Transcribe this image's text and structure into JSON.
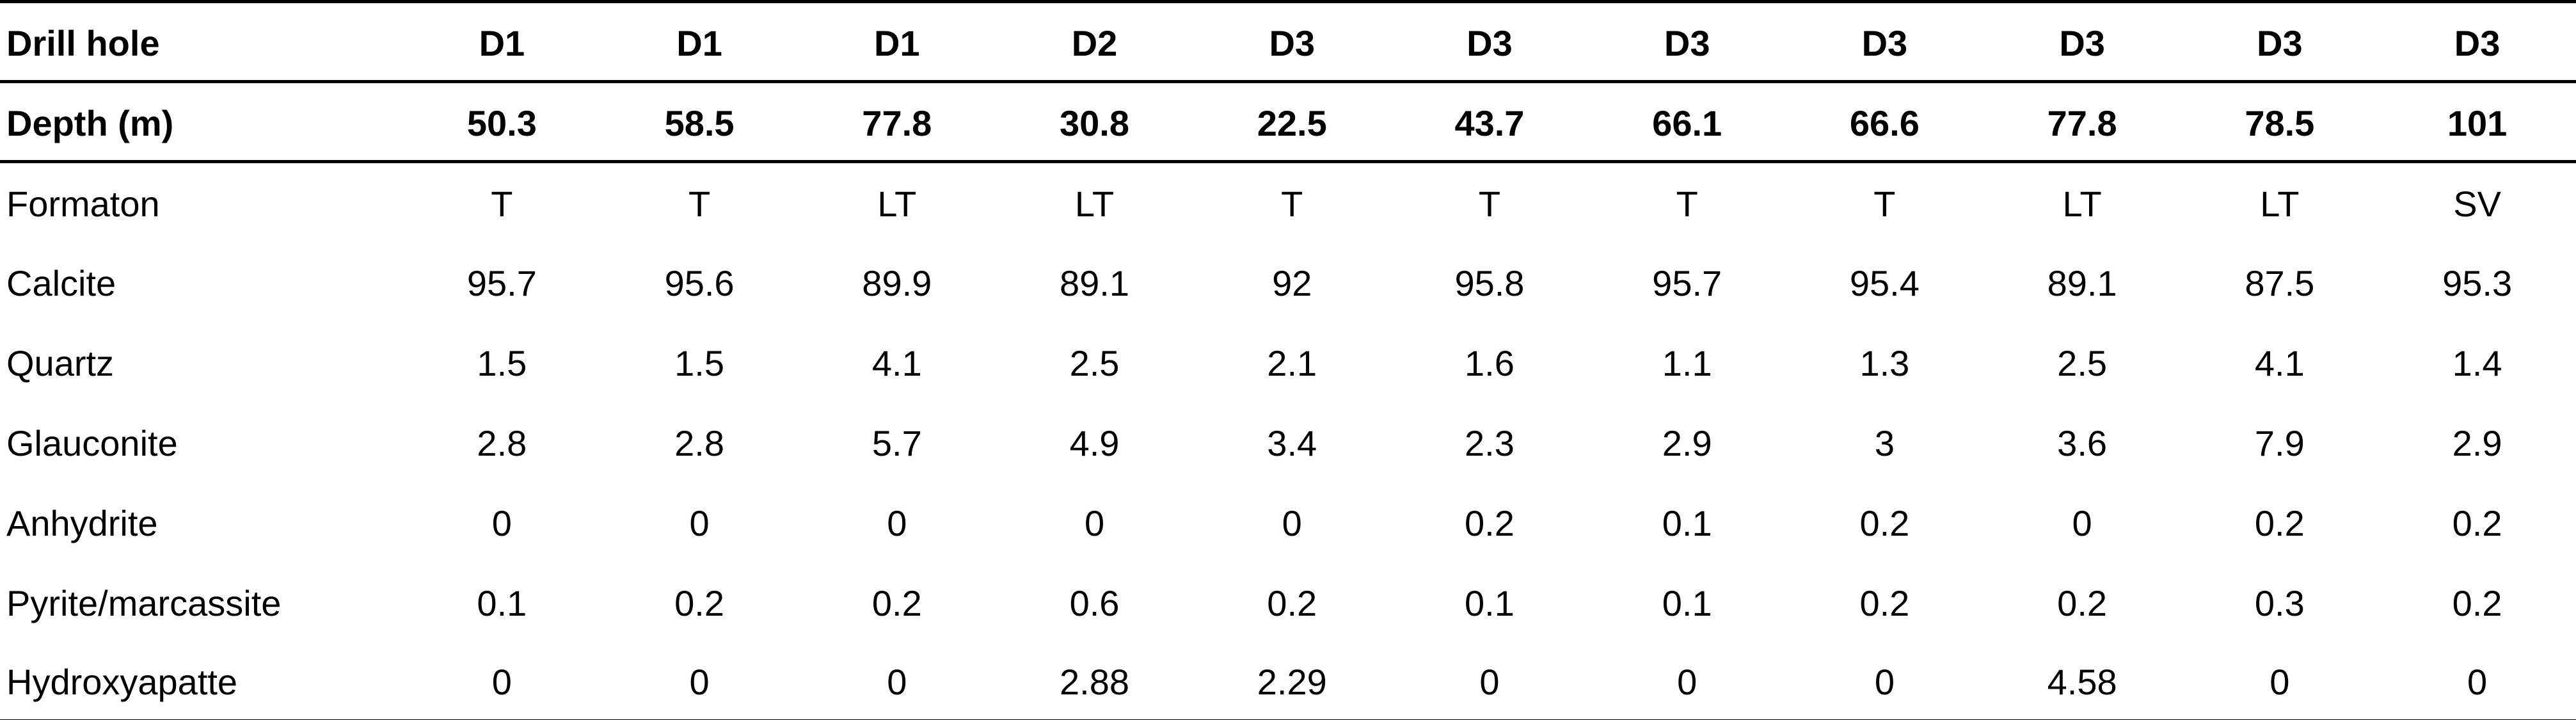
{
  "table": {
    "description": "Mineral composition table by drill hole and depth",
    "colors": {
      "background": "#ffffff",
      "text": "#000000",
      "rule": "#000000"
    },
    "rows": [
      {
        "label": "Drill hole",
        "bold": true,
        "values": [
          "D1",
          "D1",
          "D1",
          "D2",
          "D3",
          "D3",
          "D3",
          "D3",
          "D3",
          "D3",
          "D3"
        ]
      },
      {
        "label": "Depth (m)",
        "bold": true,
        "values": [
          "50.3",
          "58.5",
          "77.8",
          "30.8",
          "22.5",
          "43.7",
          "66.1",
          "66.6",
          "77.8",
          "78.5",
          "101"
        ]
      },
      {
        "label": "Formaton",
        "bold": false,
        "values": [
          "T",
          "T",
          "LT",
          "LT",
          "T",
          "T",
          "T",
          "T",
          "LT",
          "LT",
          "SV"
        ]
      },
      {
        "label": "Calcite",
        "bold": false,
        "values": [
          "95.7",
          "95.6",
          "89.9",
          "89.1",
          "92",
          "95.8",
          "95.7",
          "95.4",
          "89.1",
          "87.5",
          "95.3"
        ]
      },
      {
        "label": "Quartz",
        "bold": false,
        "values": [
          "1.5",
          "1.5",
          "4.1",
          "2.5",
          "2.1",
          "1.6",
          "1.1",
          "1.3",
          "2.5",
          "4.1",
          "1.4"
        ]
      },
      {
        "label": "Glauconite",
        "bold": false,
        "values": [
          "2.8",
          "2.8",
          "5.7",
          "4.9",
          "3.4",
          "2.3",
          "2.9",
          "3",
          "3.6",
          "7.9",
          "2.9"
        ]
      },
      {
        "label": "Anhydrite",
        "bold": false,
        "values": [
          "0",
          "0",
          "0",
          "0",
          "0",
          "0.2",
          "0.1",
          "0.2",
          "0",
          "0.2",
          "0.2"
        ]
      },
      {
        "label": "Pyrite/marcassite",
        "bold": false,
        "values": [
          "0.1",
          "0.2",
          "0.2",
          "0.6",
          "0.2",
          "0.1",
          "0.1",
          "0.2",
          "0.2",
          "0.3",
          "0.2"
        ]
      },
      {
        "label": "Hydroxyapatte",
        "bold": false,
        "values": [
          "0",
          "0",
          "0",
          "2.88",
          "2.29",
          "0",
          "0",
          "0",
          "4.58",
          "0",
          "0"
        ]
      }
    ]
  }
}
